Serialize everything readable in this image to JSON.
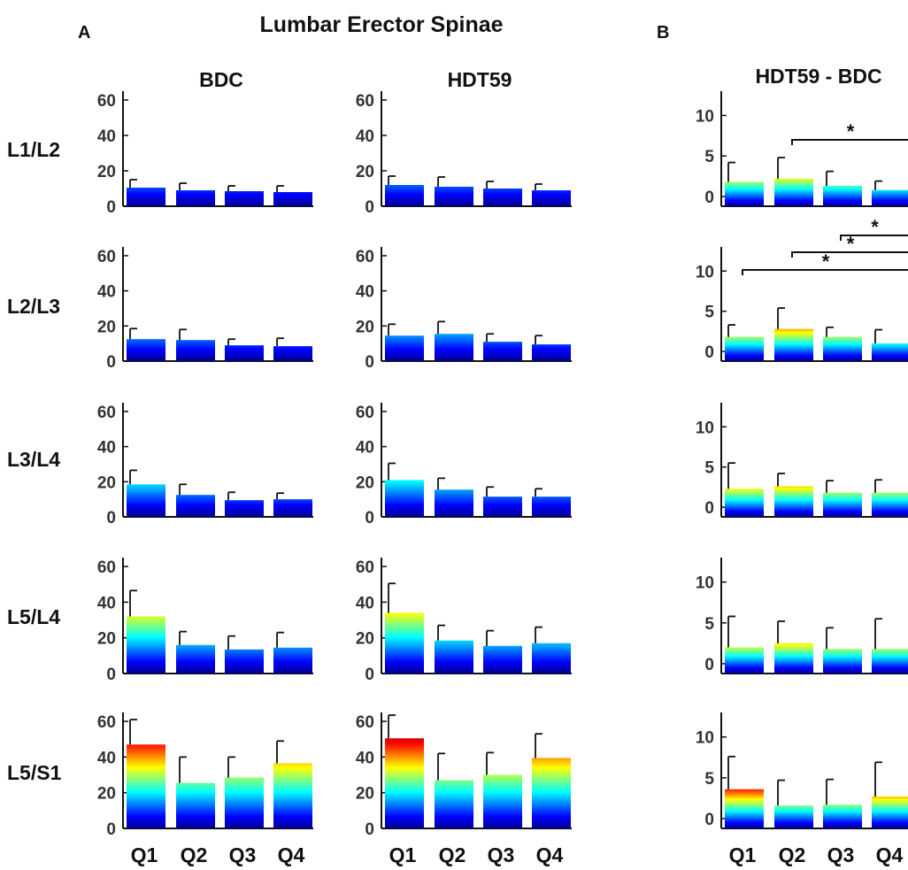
{
  "figure": {
    "panel_a_letter": "A",
    "panel_b_letter": "B",
    "main_title": "Lumbar Erector Spinae",
    "col_titles": [
      "BDC",
      "HDT59",
      "HDT59 - BDC"
    ],
    "row_labels": [
      "L1/L2",
      "L2/L3",
      "L3/L4",
      "L5/L4",
      "L5/S1"
    ],
    "x_categories": [
      "Q1",
      "Q2",
      "Q3",
      "Q4"
    ],
    "color_scale": "jet"
  },
  "chart_data": [
    {
      "type": "bar",
      "panel": "A",
      "condition": "BDC",
      "level": "L1/L2",
      "categories": [
        "Q1",
        "Q2",
        "Q3",
        "Q4"
      ],
      "values": [
        10.5,
        9.0,
        8.5,
        8.0
      ],
      "errors": [
        4.5,
        4.0,
        3.0,
        3.5
      ],
      "ylim": [
        0,
        65
      ],
      "yticks": [
        0,
        20,
        40,
        60
      ]
    },
    {
      "type": "bar",
      "panel": "A",
      "condition": "HDT59",
      "level": "L1/L2",
      "categories": [
        "Q1",
        "Q2",
        "Q3",
        "Q4"
      ],
      "values": [
        12.0,
        11.0,
        10.0,
        9.0
      ],
      "errors": [
        5.0,
        5.5,
        4.0,
        3.5
      ],
      "ylim": [
        0,
        65
      ],
      "yticks": [
        0,
        20,
        40,
        60
      ]
    },
    {
      "type": "bar",
      "panel": "B",
      "condition": "HDT59 - BDC",
      "level": "L1/L2",
      "categories": [
        "Q1",
        "Q2",
        "Q3",
        "Q4"
      ],
      "values": [
        1.8,
        2.2,
        1.3,
        0.8
      ],
      "errors": [
        2.4,
        2.6,
        1.8,
        1.1
      ],
      "ylim": [
        -1.2,
        13
      ],
      "yticks": [
        0,
        5,
        10
      ],
      "significance": [
        {
          "from": "Q2",
          "to": "Q4",
          "label": "*"
        }
      ]
    },
    {
      "type": "bar",
      "panel": "A",
      "condition": "BDC",
      "level": "L2/L3",
      "categories": [
        "Q1",
        "Q2",
        "Q3",
        "Q4"
      ],
      "values": [
        12.5,
        12.0,
        9.0,
        8.5
      ],
      "errors": [
        6.0,
        6.0,
        3.5,
        4.5
      ],
      "ylim": [
        0,
        65
      ],
      "yticks": [
        0,
        20,
        40,
        60
      ]
    },
    {
      "type": "bar",
      "panel": "A",
      "condition": "HDT59",
      "level": "L2/L3",
      "categories": [
        "Q1",
        "Q2",
        "Q3",
        "Q4"
      ],
      "values": [
        14.5,
        15.5,
        11.0,
        9.5
      ],
      "errors": [
        6.5,
        7.0,
        4.5,
        5.0
      ],
      "ylim": [
        0,
        65
      ],
      "yticks": [
        0,
        20,
        40,
        60
      ]
    },
    {
      "type": "bar",
      "panel": "B",
      "condition": "HDT59 - BDC",
      "level": "L2/L3",
      "categories": [
        "Q1",
        "Q2",
        "Q3",
        "Q4"
      ],
      "values": [
        1.8,
        2.8,
        1.8,
        1.0
      ],
      "errors": [
        1.5,
        2.6,
        1.2,
        1.7
      ],
      "ylim": [
        -1.2,
        13
      ],
      "yticks": [
        0,
        5,
        10
      ],
      "significance": [
        {
          "from": "Q1",
          "to": "Q4",
          "label": "*"
        },
        {
          "from": "Q2",
          "to": "Q4",
          "label": "*"
        },
        {
          "from": "Q3",
          "to": "Q4",
          "label": "*"
        }
      ]
    },
    {
      "type": "bar",
      "panel": "A",
      "condition": "BDC",
      "level": "L3/L4",
      "categories": [
        "Q1",
        "Q2",
        "Q3",
        "Q4"
      ],
      "values": [
        18.5,
        12.5,
        9.5,
        10.0
      ],
      "errors": [
        8.0,
        6.0,
        4.5,
        3.5
      ],
      "ylim": [
        0,
        65
      ],
      "yticks": [
        0,
        20,
        40,
        60
      ]
    },
    {
      "type": "bar",
      "panel": "A",
      "condition": "HDT59",
      "level": "L3/L4",
      "categories": [
        "Q1",
        "Q2",
        "Q3",
        "Q4"
      ],
      "values": [
        21.0,
        15.5,
        11.5,
        11.5
      ],
      "errors": [
        9.5,
        6.5,
        5.5,
        4.5
      ],
      "ylim": [
        0,
        65
      ],
      "yticks": [
        0,
        20,
        40,
        60
      ]
    },
    {
      "type": "bar",
      "panel": "B",
      "condition": "HDT59 - BDC",
      "level": "L3/L4",
      "categories": [
        "Q1",
        "Q2",
        "Q3",
        "Q4"
      ],
      "values": [
        2.3,
        2.6,
        1.8,
        1.8
      ],
      "errors": [
        3.2,
        1.6,
        1.5,
        1.6
      ],
      "ylim": [
        -1.2,
        13
      ],
      "yticks": [
        0,
        5,
        10
      ],
      "significance": []
    },
    {
      "type": "bar",
      "panel": "A",
      "condition": "BDC",
      "level": "L5/L4",
      "categories": [
        "Q1",
        "Q2",
        "Q3",
        "Q4"
      ],
      "values": [
        32.0,
        16.0,
        13.5,
        14.5
      ],
      "errors": [
        14.5,
        7.5,
        7.5,
        8.5
      ],
      "ylim": [
        0,
        65
      ],
      "yticks": [
        0,
        20,
        40,
        60
      ]
    },
    {
      "type": "bar",
      "panel": "A",
      "condition": "HDT59",
      "level": "L5/L4",
      "categories": [
        "Q1",
        "Q2",
        "Q3",
        "Q4"
      ],
      "values": [
        34.0,
        18.5,
        15.5,
        17.0
      ],
      "errors": [
        16.5,
        8.5,
        8.5,
        9.0
      ],
      "ylim": [
        0,
        65
      ],
      "yticks": [
        0,
        20,
        40,
        60
      ]
    },
    {
      "type": "bar",
      "panel": "B",
      "condition": "HDT59 - BDC",
      "level": "L5/L4",
      "categories": [
        "Q1",
        "Q2",
        "Q3",
        "Q4"
      ],
      "values": [
        2.0,
        2.5,
        1.8,
        1.8
      ],
      "errors": [
        3.8,
        2.7,
        2.6,
        3.7
      ],
      "ylim": [
        -1.2,
        13
      ],
      "yticks": [
        0,
        5,
        10
      ],
      "significance": []
    },
    {
      "type": "bar",
      "panel": "A",
      "condition": "BDC",
      "level": "L5/S1",
      "categories": [
        "Q1",
        "Q2",
        "Q3",
        "Q4"
      ],
      "values": [
        47.0,
        25.5,
        28.5,
        36.5
      ],
      "errors": [
        14.0,
        14.5,
        11.5,
        12.5
      ],
      "ylim": [
        0,
        65
      ],
      "yticks": [
        0,
        20,
        40,
        60
      ]
    },
    {
      "type": "bar",
      "panel": "A",
      "condition": "HDT59",
      "level": "L5/S1",
      "categories": [
        "Q1",
        "Q2",
        "Q3",
        "Q4"
      ],
      "values": [
        50.5,
        27.0,
        30.0,
        39.5
      ],
      "errors": [
        13.0,
        15.0,
        12.5,
        13.5
      ],
      "ylim": [
        0,
        65
      ],
      "yticks": [
        0,
        20,
        40,
        60
      ]
    },
    {
      "type": "bar",
      "panel": "B",
      "condition": "HDT59 - BDC",
      "level": "L5/S1",
      "categories": [
        "Q1",
        "Q2",
        "Q3",
        "Q4"
      ],
      "values": [
        3.6,
        1.6,
        1.7,
        2.7
      ],
      "errors": [
        4.0,
        3.1,
        3.1,
        4.2
      ],
      "ylim": [
        -1.2,
        13
      ],
      "yticks": [
        0,
        5,
        10
      ],
      "significance": []
    }
  ]
}
